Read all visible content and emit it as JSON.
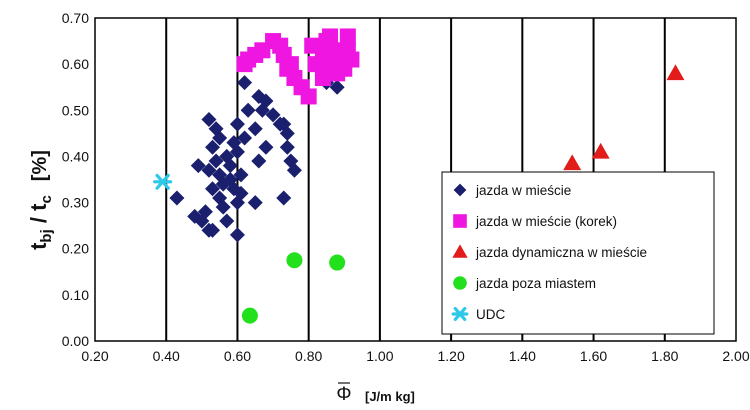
{
  "chart_data": {
    "type": "scatter",
    "title": "",
    "xlabel_symbol": "Φ",
    "xlabel_unit": "[J/m kg]",
    "ylabel_main": "t",
    "ylabel_sub1": "bj",
    "ylabel_mid": " / t",
    "ylabel_sub2": "c",
    "ylabel_unit": "[%]",
    "xlim": [
      0.2,
      2.0
    ],
    "ylim": [
      0.0,
      0.7
    ],
    "x_ticks": [
      "0.20",
      "0.40",
      "0.60",
      "0.80",
      "1.00",
      "1.20",
      "1.40",
      "1.60",
      "1.80",
      "2.00"
    ],
    "y_ticks": [
      "0.00",
      "0.10",
      "0.20",
      "0.30",
      "0.40",
      "0.50",
      "0.60",
      "0.70"
    ],
    "grid": "vertical",
    "legend_position": "lower-right",
    "series": [
      {
        "name": "jazda w mieście",
        "marker": "diamond",
        "color": "#1a1f6e",
        "points": [
          [
            0.43,
            0.31
          ],
          [
            0.48,
            0.27
          ],
          [
            0.5,
            0.26
          ],
          [
            0.51,
            0.28
          ],
          [
            0.52,
            0.24
          ],
          [
            0.53,
            0.24
          ],
          [
            0.52,
            0.48
          ],
          [
            0.54,
            0.46
          ],
          [
            0.55,
            0.44
          ],
          [
            0.53,
            0.42
          ],
          [
            0.54,
            0.39
          ],
          [
            0.55,
            0.36
          ],
          [
            0.53,
            0.33
          ],
          [
            0.55,
            0.31
          ],
          [
            0.56,
            0.29
          ],
          [
            0.57,
            0.4
          ],
          [
            0.58,
            0.38
          ],
          [
            0.58,
            0.35
          ],
          [
            0.59,
            0.33
          ],
          [
            0.59,
            0.43
          ],
          [
            0.6,
            0.41
          ],
          [
            0.61,
            0.36
          ],
          [
            0.62,
            0.44
          ],
          [
            0.6,
            0.47
          ],
          [
            0.57,
            0.26
          ],
          [
            0.6,
            0.23
          ],
          [
            0.62,
            0.56
          ],
          [
            0.63,
            0.5
          ],
          [
            0.65,
            0.46
          ],
          [
            0.66,
            0.53
          ],
          [
            0.67,
            0.5
          ],
          [
            0.68,
            0.52
          ],
          [
            0.7,
            0.49
          ],
          [
            0.72,
            0.47
          ],
          [
            0.68,
            0.42
          ],
          [
            0.66,
            0.39
          ],
          [
            0.65,
            0.3
          ],
          [
            0.73,
            0.47
          ],
          [
            0.74,
            0.45
          ],
          [
            0.74,
            0.42
          ],
          [
            0.75,
            0.39
          ],
          [
            0.76,
            0.37
          ],
          [
            0.73,
            0.31
          ],
          [
            0.85,
            0.56
          ],
          [
            0.88,
            0.55
          ],
          [
            0.49,
            0.38
          ],
          [
            0.52,
            0.37
          ],
          [
            0.56,
            0.34
          ],
          [
            0.6,
            0.3
          ],
          [
            0.61,
            0.32
          ]
        ]
      },
      {
        "name": "jazda w mieście (korek)",
        "marker": "square",
        "color": "#ee16e0",
        "points": [
          [
            0.62,
            0.6
          ],
          [
            0.63,
            0.61
          ],
          [
            0.65,
            0.62
          ],
          [
            0.67,
            0.63
          ],
          [
            0.7,
            0.65
          ],
          [
            0.72,
            0.64
          ],
          [
            0.73,
            0.62
          ],
          [
            0.74,
            0.59
          ],
          [
            0.75,
            0.6
          ],
          [
            0.76,
            0.57
          ],
          [
            0.78,
            0.55
          ],
          [
            0.8,
            0.53
          ],
          [
            0.81,
            0.64
          ],
          [
            0.82,
            0.6
          ],
          [
            0.84,
            0.62
          ],
          [
            0.85,
            0.65
          ],
          [
            0.86,
            0.66
          ],
          [
            0.87,
            0.63
          ],
          [
            0.88,
            0.58
          ],
          [
            0.89,
            0.6
          ],
          [
            0.9,
            0.62
          ],
          [
            0.91,
            0.66
          ],
          [
            0.91,
            0.63
          ],
          [
            0.9,
            0.59
          ],
          [
            0.86,
            0.6
          ],
          [
            0.84,
            0.57
          ],
          [
            0.92,
            0.61
          ]
        ]
      },
      {
        "name": "jazda dynamiczna w mieście",
        "marker": "triangle",
        "color": "#e21b1b",
        "points": [
          [
            1.54,
            0.385
          ],
          [
            1.62,
            0.41
          ],
          [
            1.83,
            0.58
          ]
        ]
      },
      {
        "name": "jazda poza miastem",
        "marker": "circle",
        "color": "#22e01c",
        "points": [
          [
            0.635,
            0.055
          ],
          [
            0.76,
            0.175
          ],
          [
            0.88,
            0.17
          ]
        ]
      },
      {
        "name": "UDC",
        "marker": "star",
        "color": "#2ec8e8",
        "points": [
          [
            0.39,
            0.345
          ]
        ]
      }
    ]
  }
}
